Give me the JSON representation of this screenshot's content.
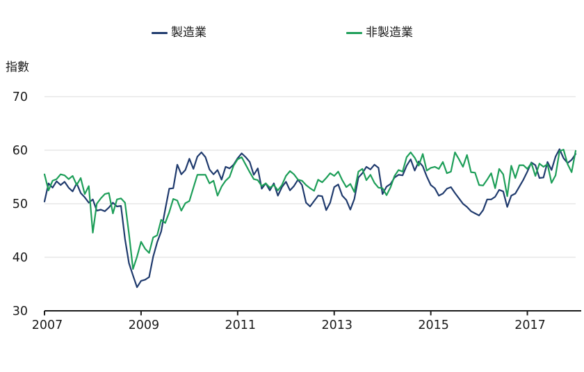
{
  "legend": {
    "items": [
      {
        "label": "製造業",
        "color": "#1f3a6d"
      },
      {
        "label": "非製造業",
        "color": "#1d9e58"
      }
    ]
  },
  "chart_data": {
    "type": "line",
    "title": "",
    "xlabel": "",
    "ylabel": "指數",
    "ylim": [
      30,
      70
    ],
    "yticks": [
      30,
      40,
      50,
      60,
      70
    ],
    "xticks": [
      2007,
      2009,
      2011,
      2013,
      2015,
      2017
    ],
    "x_start": "2007-01",
    "x_end": "2018-01",
    "frequency": "monthly",
    "grid": "horizontal-light",
    "legend_position": "top",
    "series": [
      {
        "name": "製造業",
        "color": "#1f3a6d",
        "values": [
          50.4,
          53.8,
          53.0,
          54.2,
          53.5,
          54.1,
          53.0,
          52.3,
          53.8,
          52.0,
          51.2,
          50.2,
          50.8,
          48.7,
          48.9,
          48.6,
          49.3,
          50.2,
          49.5,
          49.6,
          43.4,
          38.9,
          36.6,
          34.4,
          35.6,
          35.8,
          36.3,
          40.1,
          42.8,
          44.8,
          48.9,
          52.8,
          52.9,
          57.3,
          55.5,
          56.3,
          58.4,
          56.5,
          58.8,
          59.6,
          58.7,
          56.4,
          55.5,
          56.3,
          54.5,
          56.9,
          56.6,
          57.3,
          58.5,
          59.4,
          58.7,
          57.8,
          55.4,
          56.6,
          52.8,
          53.8,
          52.5,
          53.8,
          51.5,
          53.1,
          54.1,
          52.5,
          53.3,
          54.5,
          53.5,
          50.2,
          49.5,
          50.5,
          51.5,
          51.4,
          48.8,
          50.2,
          53.1,
          53.6,
          51.5,
          50.7,
          48.9,
          50.9,
          54.9,
          55.7,
          56.9,
          56.4,
          57.3,
          56.7,
          51.8,
          53.2,
          53.7,
          54.9,
          55.4,
          55.3,
          57.1,
          58.3,
          56.2,
          57.9,
          57.0,
          55.1,
          53.5,
          52.9,
          51.5,
          51.9,
          52.8,
          53.1,
          52.0,
          51.0,
          50.0,
          49.4,
          48.6,
          48.2,
          47.8,
          48.8,
          50.8,
          50.8,
          51.3,
          52.6,
          52.3,
          49.4,
          51.5,
          51.9,
          53.2,
          54.5,
          56.0,
          57.7,
          57.2,
          54.8,
          54.9,
          57.8,
          56.3,
          58.8,
          60.2,
          58.5,
          57.6,
          58.2,
          59.3
        ]
      },
      {
        "name": "非製造業",
        "color": "#1d9e58",
        "values": [
          55.5,
          52.5,
          54.3,
          54.6,
          55.5,
          55.3,
          54.6,
          55.2,
          53.5,
          54.8,
          51.8,
          53.3,
          44.6,
          50.0,
          51.0,
          51.8,
          52.0,
          48.2,
          50.8,
          51.0,
          50.2,
          44.4,
          37.8,
          40.1,
          42.9,
          41.6,
          40.8,
          43.7,
          44.1,
          47.0,
          46.4,
          48.4,
          50.9,
          50.6,
          48.7,
          50.1,
          50.5,
          53.0,
          55.4,
          55.4,
          55.4,
          53.8,
          54.3,
          51.5,
          53.2,
          54.3,
          55.0,
          57.1,
          58.3,
          58.7,
          57.3,
          55.9,
          54.6,
          54.4,
          53.3,
          53.8,
          53.0,
          53.5,
          52.5,
          53.5,
          55.2,
          56.1,
          55.5,
          54.5,
          54.3,
          53.5,
          52.9,
          52.4,
          54.5,
          54.0,
          54.8,
          55.7,
          55.2,
          56.0,
          54.4,
          53.1,
          53.7,
          52.2,
          56.0,
          56.5,
          54.4,
          55.4,
          53.9,
          53.0,
          52.9,
          51.6,
          53.1,
          55.2,
          56.3,
          56.0,
          58.7,
          59.6,
          58.6,
          57.1,
          59.3,
          56.2,
          56.7,
          56.9,
          56.5,
          57.8,
          55.7,
          56.0,
          59.6,
          58.3,
          56.9,
          59.1,
          55.9,
          55.8,
          53.5,
          53.4,
          54.5,
          55.7,
          52.9,
          56.5,
          55.5,
          51.4,
          57.1,
          54.8,
          57.2,
          57.2,
          56.5,
          57.6,
          55.2,
          57.5,
          56.9,
          57.4,
          53.9,
          55.3,
          59.8,
          60.1,
          57.4,
          55.9,
          59.9
        ]
      }
    ]
  }
}
